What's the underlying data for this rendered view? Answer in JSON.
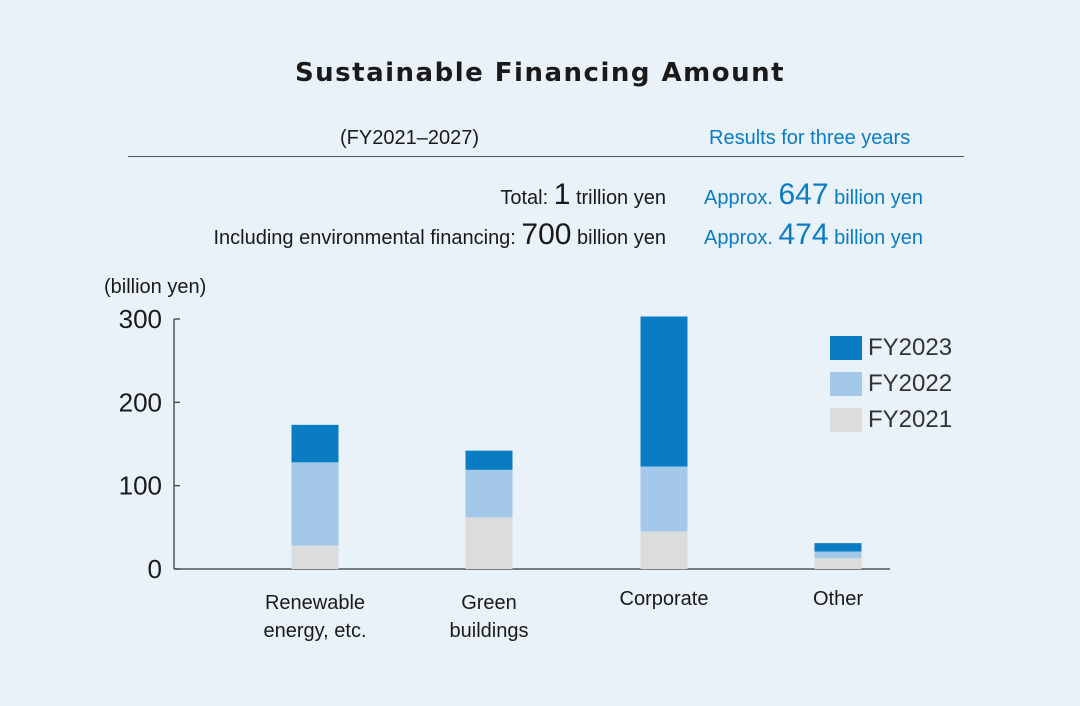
{
  "title": "Sustainable Financing Amount",
  "header": {
    "period": "(FY2021–2027)",
    "results_heading": "Results for three years"
  },
  "targets": {
    "total": {
      "label": "Total: ",
      "value": "1",
      "unit": " trillion yen"
    },
    "environmental": {
      "label": "Including environmental financing: ",
      "value": "700",
      "unit": " billion yen"
    }
  },
  "results": {
    "total": {
      "prefix": "Approx. ",
      "value": "647",
      "unit": " billion yen"
    },
    "environmental": {
      "prefix": "Approx. ",
      "value": "474",
      "unit": " billion yen"
    }
  },
  "colors": {
    "FY2023": "#0a7cc4",
    "FY2022": "#a3c8ea",
    "FY2021": "#dcdcdc",
    "axis": "#555555"
  },
  "chart_data": {
    "type": "bar",
    "stacked": true,
    "ylabel": "(billion yen)",
    "ylim": [
      0,
      300
    ],
    "yticks": [
      0,
      100,
      200,
      300
    ],
    "categories": [
      "Renewable\nenergy, etc.",
      "Green\nbuildings",
      "Corporate",
      "Other"
    ],
    "series": [
      {
        "name": "FY2021",
        "values": [
          28,
          62,
          45,
          13
        ]
      },
      {
        "name": "FY2022",
        "values": [
          100,
          57,
          78,
          8
        ]
      },
      {
        "name": "FY2023",
        "values": [
          45,
          23,
          180,
          10
        ]
      }
    ],
    "legend_order": [
      "FY2023",
      "FY2022",
      "FY2021"
    ],
    "legend": "right",
    "grid": false
  }
}
